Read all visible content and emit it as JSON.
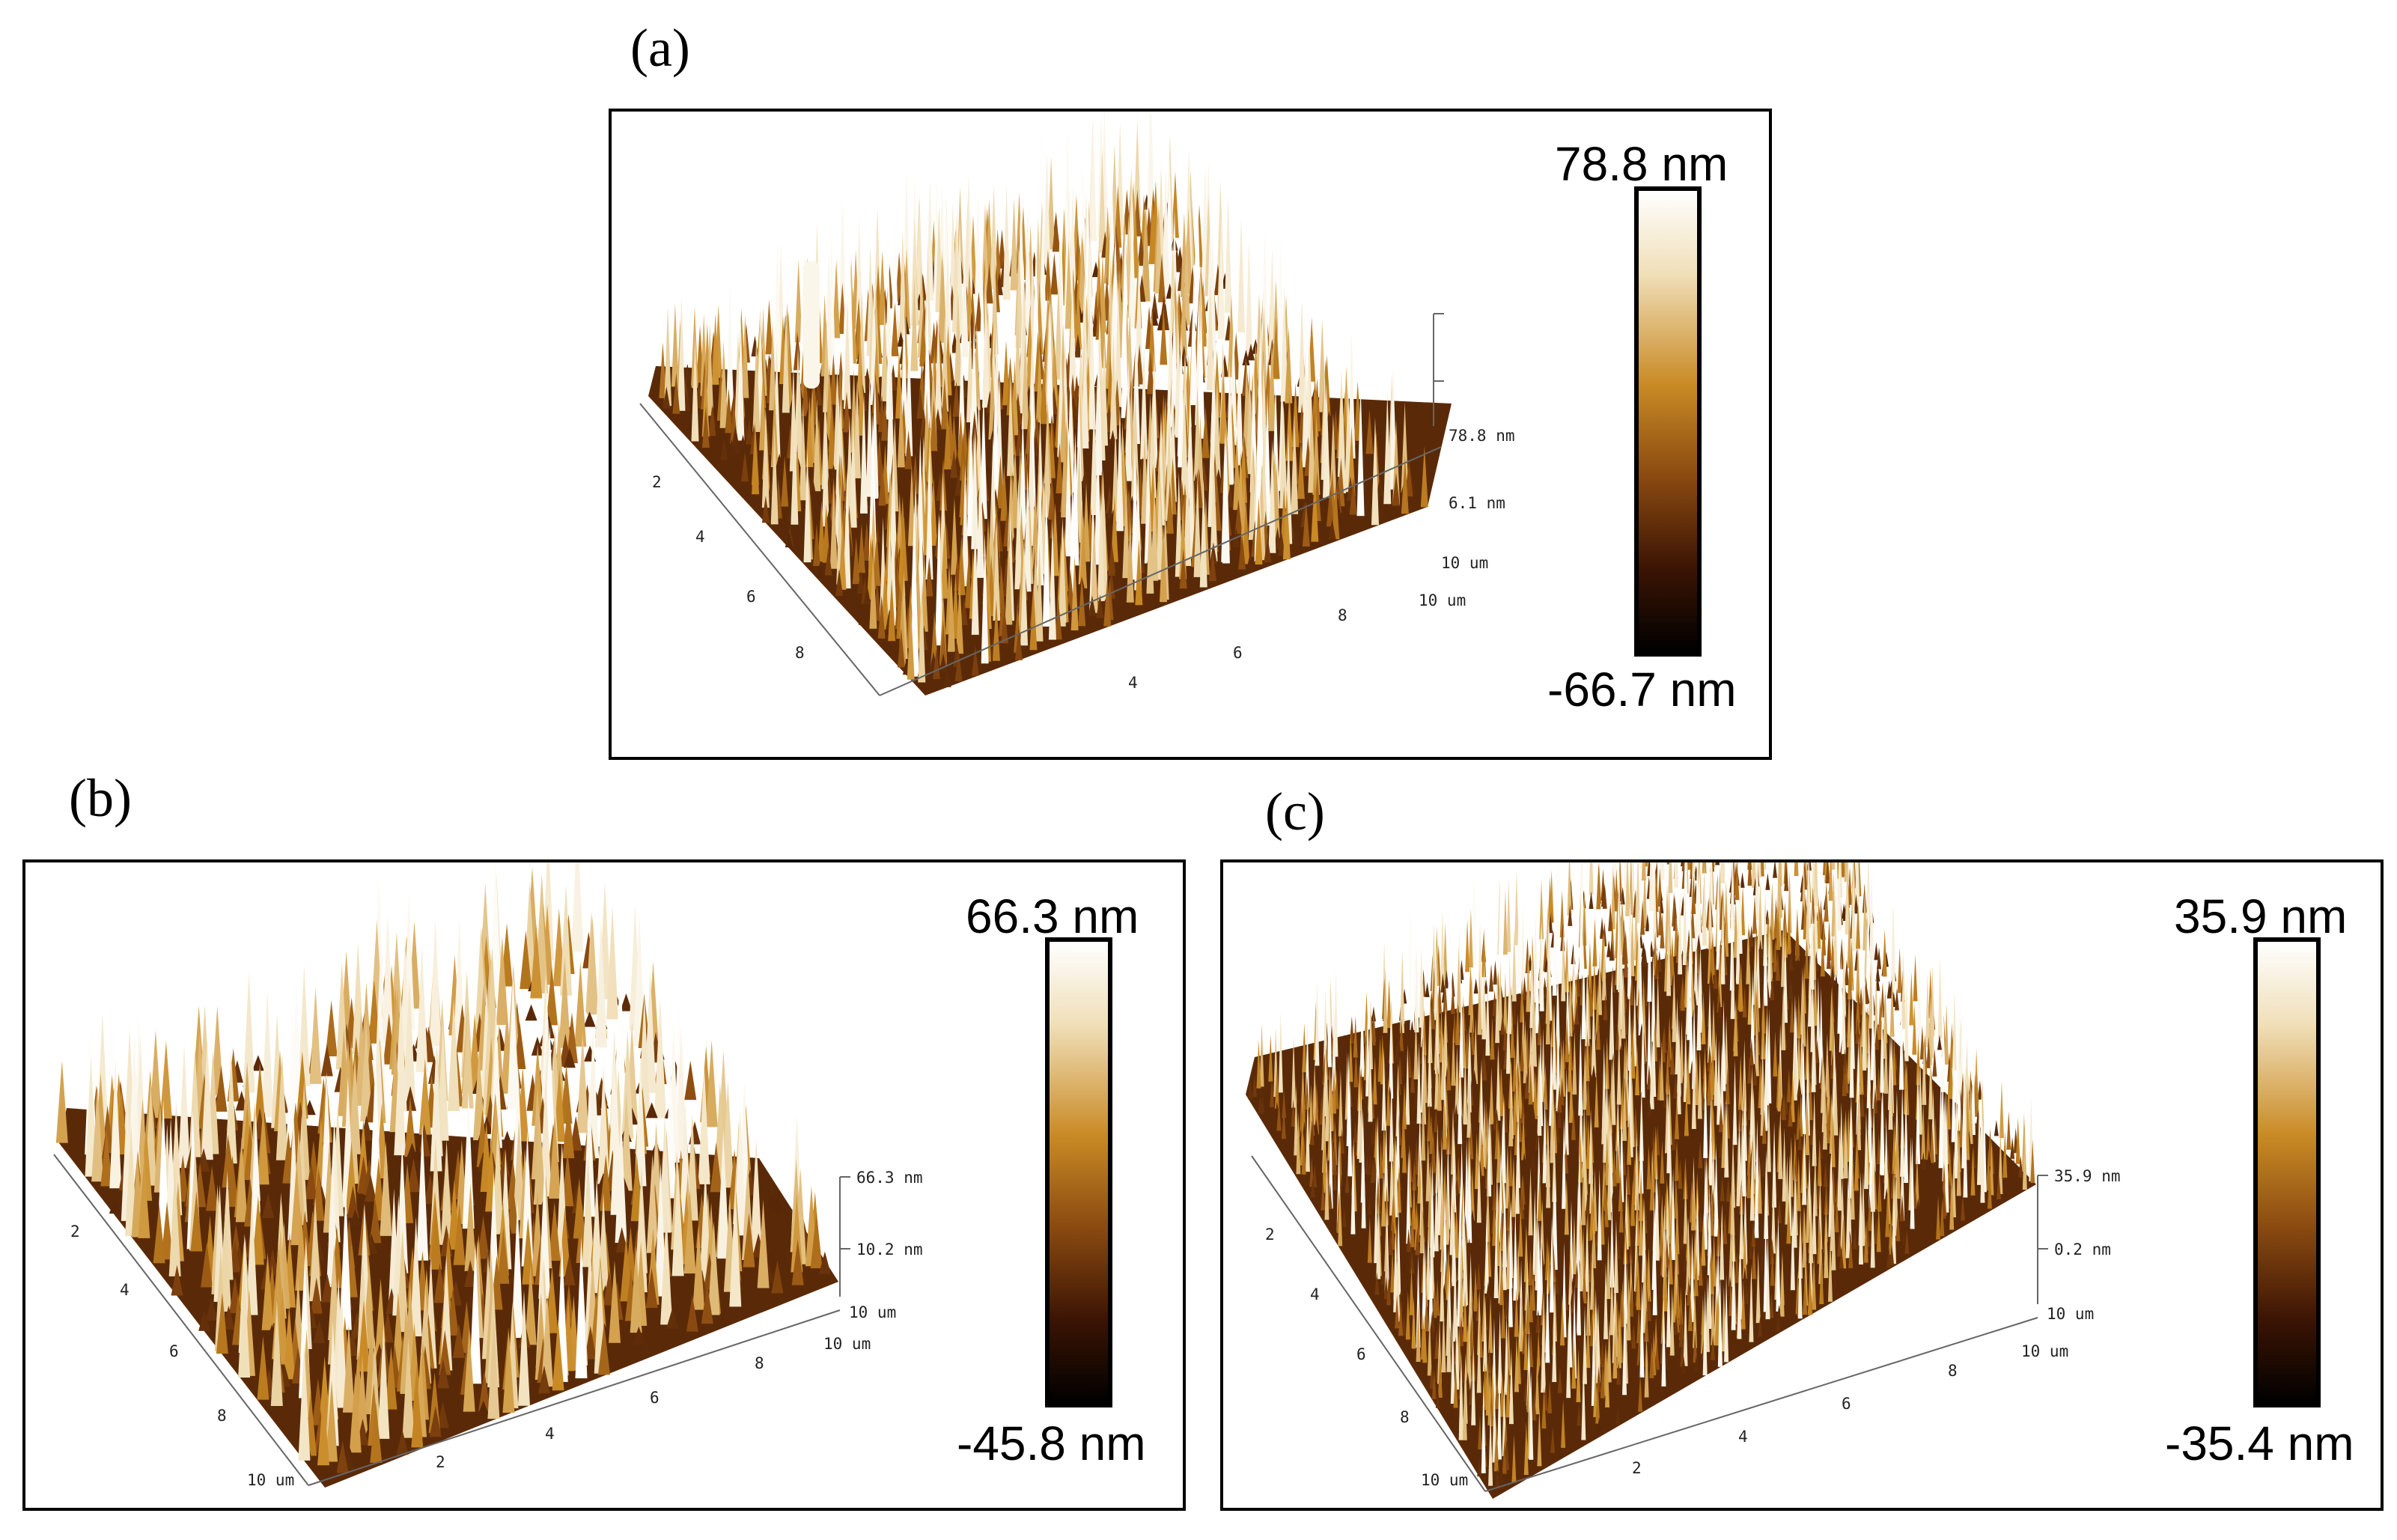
{
  "panels": [
    {
      "id": "a",
      "label": "(a)",
      "scale_max": "78.8 nm",
      "scale_min": "-66.7 nm",
      "z_ticks": [
        "78.8 nm",
        "6.1 nm",
        "10 um"
      ],
      "y_axis_ticks": [
        "2",
        "4",
        "6",
        "8"
      ],
      "x_axis_ticks": [
        "4",
        "6",
        "8",
        "10 um"
      ],
      "colormap": [
        "#000000",
        "#3b1404",
        "#8a4a10",
        "#c98a25",
        "#f0dfb8",
        "#ffffff"
      ]
    },
    {
      "id": "b",
      "label": "(b)",
      "scale_max": "66.3 nm",
      "scale_min": "-45.8 nm",
      "z_ticks": [
        "66.3 nm",
        "10.2 nm",
        "10 um"
      ],
      "y_axis_ticks": [
        "2",
        "4",
        "6",
        "8",
        "10 um"
      ],
      "x_axis_ticks": [
        "2",
        "4",
        "6",
        "8",
        "10 um"
      ],
      "colormap": [
        "#000000",
        "#3b1404",
        "#8a4a10",
        "#c98a25",
        "#f0dfb8",
        "#ffffff"
      ]
    },
    {
      "id": "c",
      "label": "(c)",
      "scale_max": "35.9 nm",
      "scale_min": "-35.4 nm",
      "z_ticks": [
        "35.9 nm",
        "0.2 nm",
        "10 um"
      ],
      "y_axis_ticks": [
        "2",
        "4",
        "6",
        "8",
        "10 um"
      ],
      "x_axis_ticks": [
        "2",
        "4",
        "6",
        "8",
        "10 um"
      ],
      "colormap": [
        "#000000",
        "#3b1404",
        "#8a4a10",
        "#c98a25",
        "#f0dfb8",
        "#ffffff"
      ]
    }
  ]
}
